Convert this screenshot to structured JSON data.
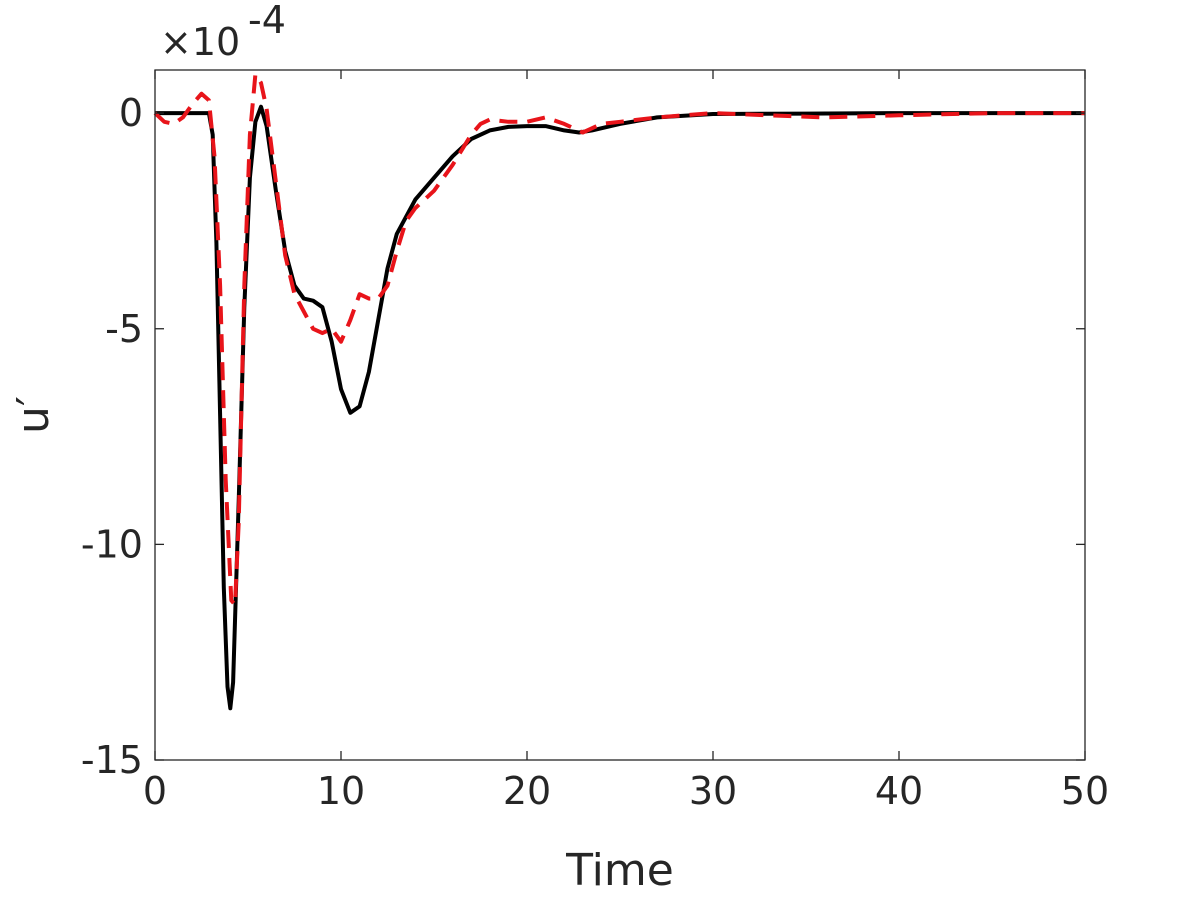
{
  "chart_data": {
    "type": "line",
    "title": "",
    "xlabel": "Time",
    "ylabel": "u′",
    "y_exponent_label": "×10",
    "y_exponent_power": "-4",
    "xlim": [
      0,
      50
    ],
    "ylim": [
      -15,
      1
    ],
    "x_ticks": [
      0,
      10,
      20,
      30,
      40,
      50
    ],
    "x_tick_labels": [
      "0",
      "10",
      "20",
      "30",
      "40",
      "50"
    ],
    "y_ticks": [
      0,
      -5,
      -10,
      -15
    ],
    "y_tick_labels": [
      "0",
      "-5",
      "-10",
      "-15"
    ],
    "grid": false,
    "legend": "none",
    "series": [
      {
        "color": "#000000",
        "style": "solid",
        "points": [
          [
            0,
            0
          ],
          [
            2.9,
            0
          ],
          [
            3.1,
            -0.5
          ],
          [
            3.3,
            -3
          ],
          [
            3.5,
            -7
          ],
          [
            3.7,
            -11
          ],
          [
            3.9,
            -13.3
          ],
          [
            4.05,
            -13.8
          ],
          [
            4.2,
            -13.2
          ],
          [
            4.5,
            -9
          ],
          [
            4.8,
            -4.5
          ],
          [
            5.1,
            -1.5
          ],
          [
            5.4,
            -0.2
          ],
          [
            5.7,
            0.15
          ],
          [
            6.0,
            -0.3
          ],
          [
            6.5,
            -1.8
          ],
          [
            7.0,
            -3.2
          ],
          [
            7.5,
            -4.0
          ],
          [
            8.0,
            -4.3
          ],
          [
            8.5,
            -4.35
          ],
          [
            9.0,
            -4.5
          ],
          [
            9.5,
            -5.3
          ],
          [
            10.0,
            -6.4
          ],
          [
            10.5,
            -6.95
          ],
          [
            11.0,
            -6.8
          ],
          [
            11.5,
            -6.0
          ],
          [
            12.0,
            -4.8
          ],
          [
            12.5,
            -3.6
          ],
          [
            13.0,
            -2.8
          ],
          [
            14.0,
            -2.0
          ],
          [
            15.0,
            -1.5
          ],
          [
            16.0,
            -1.0
          ],
          [
            17.0,
            -0.6
          ],
          [
            18.0,
            -0.4
          ],
          [
            19.0,
            -0.32
          ],
          [
            20.0,
            -0.3
          ],
          [
            21.0,
            -0.3
          ],
          [
            22.0,
            -0.4
          ],
          [
            22.8,
            -0.45
          ],
          [
            23.5,
            -0.4
          ],
          [
            25.0,
            -0.25
          ],
          [
            27.0,
            -0.1
          ],
          [
            30.0,
            -0.02
          ],
          [
            35.0,
            -0.01
          ],
          [
            40.0,
            0
          ],
          [
            45.0,
            0
          ],
          [
            50.0,
            0
          ]
        ]
      },
      {
        "color": "#e8141a",
        "style": "dashed",
        "points": [
          [
            0,
            0
          ],
          [
            0.5,
            -0.2
          ],
          [
            1.0,
            -0.25
          ],
          [
            1.5,
            -0.1
          ],
          [
            2.0,
            0.2
          ],
          [
            2.5,
            0.45
          ],
          [
            2.9,
            0.3
          ],
          [
            3.2,
            -1.0
          ],
          [
            3.5,
            -4.0
          ],
          [
            3.8,
            -8.5
          ],
          [
            4.1,
            -11.3
          ],
          [
            4.3,
            -11.4
          ],
          [
            4.5,
            -9.5
          ],
          [
            4.8,
            -4.0
          ],
          [
            5.1,
            -0.5
          ],
          [
            5.4,
            0.9
          ],
          [
            5.7,
            0.7
          ],
          [
            6.0,
            0.1
          ],
          [
            6.5,
            -1.6
          ],
          [
            7.0,
            -3.3
          ],
          [
            7.5,
            -4.2
          ],
          [
            8.0,
            -4.6
          ],
          [
            8.5,
            -5.0
          ],
          [
            9.0,
            -5.1
          ],
          [
            9.5,
            -5.0
          ],
          [
            10.0,
            -5.3
          ],
          [
            10.5,
            -4.8
          ],
          [
            11.0,
            -4.2
          ],
          [
            11.5,
            -4.3
          ],
          [
            12.0,
            -4.3
          ],
          [
            12.5,
            -4.0
          ],
          [
            13.0,
            -3.2
          ],
          [
            13.5,
            -2.5
          ],
          [
            14.0,
            -2.2
          ],
          [
            15.0,
            -1.8
          ],
          [
            16.0,
            -1.2
          ],
          [
            17.0,
            -0.5
          ],
          [
            17.5,
            -0.25
          ],
          [
            18.0,
            -0.15
          ],
          [
            19.0,
            -0.2
          ],
          [
            20.0,
            -0.2
          ],
          [
            21.0,
            -0.1
          ],
          [
            22.0,
            -0.25
          ],
          [
            23.0,
            -0.45
          ],
          [
            24.0,
            -0.25
          ],
          [
            25.0,
            -0.2
          ],
          [
            27.0,
            -0.1
          ],
          [
            30.0,
            0
          ],
          [
            33.0,
            -0.05
          ],
          [
            36.0,
            -0.1
          ],
          [
            40.0,
            -0.05
          ],
          [
            45.0,
            0
          ],
          [
            50.0,
            0
          ]
        ]
      }
    ]
  }
}
